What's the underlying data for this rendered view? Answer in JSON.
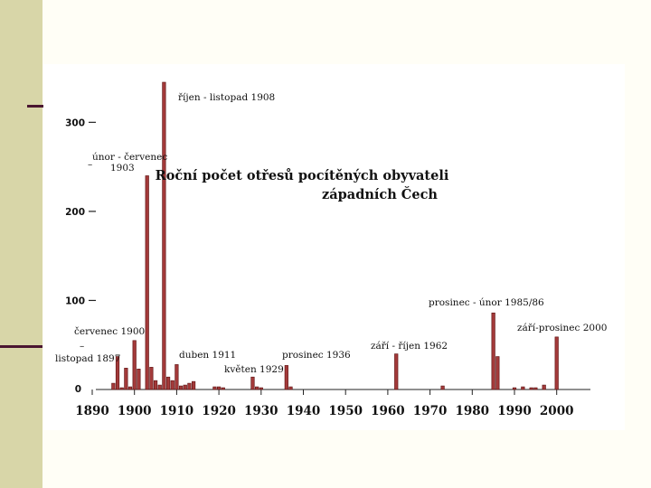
{
  "chart_data": {
    "type": "bar",
    "title": "Roční počet otřesů pocítěných obyvateli",
    "subtitle": "západních Čech",
    "xlabel": "",
    "ylabel": "",
    "xlim": [
      1888,
      2006
    ],
    "ylim": [
      0,
      345
    ],
    "yticks": [
      0,
      100,
      200,
      300
    ],
    "yticklabels": [
      "0",
      "100",
      "200",
      "300"
    ],
    "xticks": [
      1890,
      1900,
      1910,
      1920,
      1930,
      1940,
      1950,
      1960,
      1970,
      1980,
      1990,
      2000
    ],
    "xticklabels": [
      "1890",
      "1900",
      "1910",
      "1920",
      "1930",
      "1940",
      "1950",
      "1960",
      "1970",
      "1980",
      "1990",
      "2000"
    ],
    "grid": false,
    "bar_color": "#a33a3a",
    "bar_edge_color": "#5a1010",
    "x": [
      1895,
      1896,
      1897,
      1898,
      1899,
      1900,
      1901,
      1903,
      1904,
      1905,
      1906,
      1907,
      1908,
      1909,
      1910,
      1911,
      1912,
      1913,
      1914,
      1919,
      1920,
      1921,
      1928,
      1929,
      1930,
      1936,
      1937,
      1962,
      1973,
      1985,
      1986,
      1990,
      1992,
      1994,
      1995,
      1997,
      2000
    ],
    "values": [
      7,
      37,
      2,
      24,
      3,
      55,
      23,
      240,
      25,
      10,
      5,
      345,
      14,
      10,
      28,
      4,
      5,
      7,
      9,
      3,
      3,
      2,
      14,
      3,
      2,
      27,
      3,
      40,
      4,
      86,
      37,
      2,
      3,
      2,
      2,
      5,
      59
    ],
    "annotations": [
      "říjen - listopad 1908",
      "únor - červenec",
      "1903",
      "červenec 1900",
      "listopad 1897",
      "duben 1911",
      "květen 1929",
      "prosinec 1936",
      "září - říjen 1962",
      "prosinec -  únor 1985/86",
      "září-prosinec 2000"
    ]
  }
}
